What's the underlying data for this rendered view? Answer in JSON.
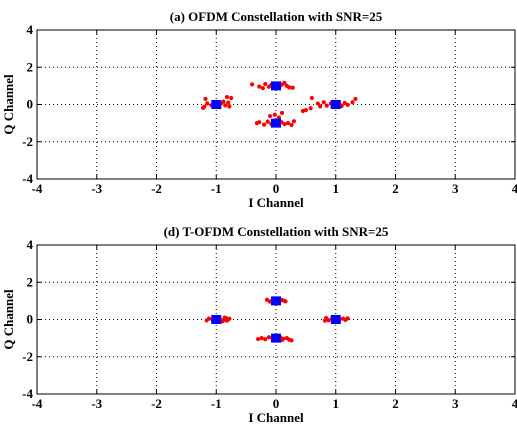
{
  "chart_data": [
    {
      "type": "scatter",
      "title": "(a) OFDM Constellation with SNR=25",
      "xlabel": "I Channel",
      "ylabel": "Q Channel",
      "xlim": [
        -4,
        4
      ],
      "ylim": [
        -4,
        4
      ],
      "xticks": [
        -4,
        -3,
        -2,
        -1,
        0,
        1,
        2,
        3,
        4
      ],
      "yticks": [
        -4,
        -2,
        0,
        2,
        4
      ],
      "grid": true,
      "series": [
        {
          "marker": "dot",
          "color": "#ff0000",
          "points": [
            [
              0.0,
              1.02
            ],
            [
              -0.08,
              1.05
            ],
            [
              0.06,
              0.98
            ],
            [
              0.1,
              1.07
            ],
            [
              -0.12,
              0.95
            ],
            [
              0.18,
              1.0
            ],
            [
              -0.18,
              1.1
            ],
            [
              0.05,
              0.9
            ],
            [
              -0.04,
              1.12
            ],
            [
              0.22,
              0.92
            ],
            [
              -0.28,
              0.96
            ],
            [
              -0.4,
              1.08
            ],
            [
              0.28,
              0.9
            ],
            [
              0.14,
              1.16
            ],
            [
              -0.22,
              0.88
            ],
            [
              0.02,
              -0.98
            ],
            [
              -0.08,
              -1.04
            ],
            [
              0.09,
              -0.95
            ],
            [
              0.14,
              -1.05
            ],
            [
              -0.14,
              -0.92
            ],
            [
              0.2,
              -1.0
            ],
            [
              -0.2,
              -1.08
            ],
            [
              -0.28,
              -0.95
            ],
            [
              0.26,
              -1.1
            ],
            [
              0.05,
              -0.7
            ],
            [
              -0.02,
              -0.55
            ],
            [
              0.1,
              -0.45
            ],
            [
              -0.1,
              -0.62
            ],
            [
              0.3,
              -0.9
            ],
            [
              -0.32,
              -1.0
            ],
            [
              1.0,
              0.02
            ],
            [
              1.08,
              -0.04
            ],
            [
              0.92,
              0.06
            ],
            [
              1.15,
              0.08
            ],
            [
              0.85,
              -0.06
            ],
            [
              1.2,
              -0.02
            ],
            [
              0.8,
              0.12
            ],
            [
              1.28,
              0.12
            ],
            [
              0.74,
              -0.1
            ],
            [
              1.05,
              0.12
            ],
            [
              0.95,
              -0.12
            ],
            [
              1.33,
              0.3
            ],
            [
              0.6,
              0.35
            ],
            [
              0.7,
              0.05
            ],
            [
              1.1,
              -0.08
            ],
            [
              0.5,
              -0.3
            ],
            [
              0.58,
              -0.2
            ],
            [
              0.45,
              -0.35
            ],
            [
              -1.0,
              0.02
            ],
            [
              -1.08,
              -0.04
            ],
            [
              -0.92,
              0.05
            ],
            [
              -0.85,
              -0.05
            ],
            [
              -1.15,
              0.06
            ],
            [
              -0.8,
              0.1
            ],
            [
              -0.78,
              -0.1
            ],
            [
              -1.2,
              -0.12
            ],
            [
              -0.88,
              0.15
            ],
            [
              -1.05,
              -0.1
            ],
            [
              -1.18,
              0.3
            ],
            [
              -1.22,
              -0.18
            ],
            [
              -0.75,
              0.35
            ],
            [
              -0.82,
              0.4
            ],
            [
              -0.95,
              -0.15
            ]
          ]
        },
        {
          "marker": "square",
          "color": "#0000ff",
          "points": [
            [
              0,
              1
            ],
            [
              0,
              -1
            ],
            [
              1,
              0
            ],
            [
              -1,
              0
            ]
          ]
        }
      ]
    },
    {
      "type": "scatter",
      "title": "(d) T-OFDM Constellation with SNR=25",
      "xlabel": "I Channel",
      "ylabel": "Q Channel",
      "xlim": [
        -4,
        4
      ],
      "ylim": [
        -4,
        4
      ],
      "xticks": [
        -4,
        -3,
        -2,
        -1,
        0,
        1,
        2,
        3,
        4
      ],
      "yticks": [
        -4,
        -2,
        0,
        2,
        4
      ],
      "grid": true,
      "series": [
        {
          "marker": "dot",
          "color": "#ff0000",
          "points": [
            [
              0.0,
              1.02
            ],
            [
              -0.06,
              1.04
            ],
            [
              0.06,
              0.98
            ],
            [
              0.1,
              1.05
            ],
            [
              -0.1,
              0.96
            ],
            [
              0.14,
              1.0
            ],
            [
              -0.15,
              1.06
            ],
            [
              0.04,
              0.95
            ],
            [
              -0.03,
              1.08
            ],
            [
              0.16,
              0.97
            ],
            [
              0.02,
              -0.98
            ],
            [
              -0.06,
              -1.03
            ],
            [
              0.07,
              -0.96
            ],
            [
              0.12,
              -1.04
            ],
            [
              -0.12,
              -0.95
            ],
            [
              0.18,
              -1.0
            ],
            [
              -0.18,
              -1.06
            ],
            [
              -0.24,
              -1.0
            ],
            [
              0.22,
              -1.08
            ],
            [
              0.26,
              -1.12
            ],
            [
              -0.3,
              -1.05
            ],
            [
              0.1,
              -1.1
            ],
            [
              1.0,
              0.02
            ],
            [
              1.06,
              -0.03
            ],
            [
              0.94,
              0.04
            ],
            [
              1.12,
              0.05
            ],
            [
              0.88,
              -0.04
            ],
            [
              1.16,
              -0.02
            ],
            [
              0.84,
              0.08
            ],
            [
              1.2,
              0.06
            ],
            [
              0.82,
              -0.06
            ],
            [
              1.04,
              0.08
            ],
            [
              -1.0,
              0.02
            ],
            [
              -1.06,
              -0.03
            ],
            [
              -0.94,
              0.04
            ],
            [
              -0.88,
              -0.04
            ],
            [
              -1.12,
              0.05
            ],
            [
              -0.84,
              0.08
            ],
            [
              -0.82,
              -0.06
            ],
            [
              -1.16,
              -0.05
            ],
            [
              -0.86,
              0.1
            ],
            [
              -1.02,
              -0.08
            ],
            [
              -0.78,
              0.04
            ],
            [
              -0.9,
              -0.1
            ]
          ]
        },
        {
          "marker": "square",
          "color": "#0000ff",
          "points": [
            [
              0,
              1
            ],
            [
              0,
              -1
            ],
            [
              1,
              0
            ],
            [
              -1,
              0
            ]
          ]
        }
      ]
    }
  ]
}
